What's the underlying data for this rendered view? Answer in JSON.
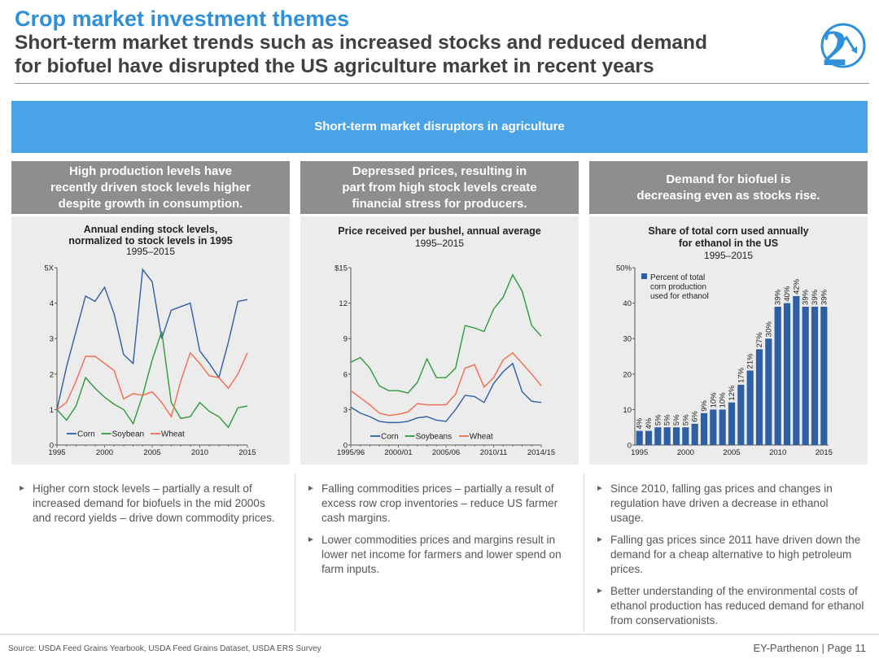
{
  "header": {
    "title": "Crop market investment themes",
    "subtitle_line1": "Short-term market trends such as increased stocks and reduced demand",
    "subtitle_line2": "for biofuel have disrupted the US agriculture market in recent years",
    "badge_number": "2",
    "badge_icon": "downward-trend-arrow-icon",
    "accent_color": "#2f8fd8"
  },
  "banner": {
    "label": "Short-term market disruptors in agriculture",
    "color": "#4aa3e6"
  },
  "columns": [
    {
      "heading_lines": [
        "High production levels have",
        "recently driven stock levels higher",
        "despite growth in consumption."
      ],
      "chart_title_lines": [
        "Annual ending stock levels,",
        "normalized to stock levels in 1995"
      ],
      "chart_subtitle": "1995–2015",
      "bullets": [
        "Higher corn stock levels – partially a result of increased demand for biofuels in the mid 2000s and record yields – drive down commodity prices."
      ]
    },
    {
      "heading_lines": [
        "Depressed prices, resulting in",
        "part from high stock levels create",
        "financial stress for producers."
      ],
      "chart_title_lines": [
        "Price received per bushel, annual average"
      ],
      "chart_subtitle": "1995–2015",
      "bullets": [
        "Falling commodities prices – partially a result of excess row crop inventories – reduce US farmer cash margins.",
        "Lower commodities prices and margins result in lower net income for farmers and lower spend on farm inputs."
      ]
    },
    {
      "heading_lines": [
        "Demand for biofuel is",
        "decreasing even as stocks rise."
      ],
      "chart_title_lines": [
        "Share of total corn used annually",
        "for ethanol in the US"
      ],
      "chart_subtitle": "1995–2015",
      "bullets": [
        "Since 2010, falling gas prices and changes in regulation have driven a decrease in ethanol usage.",
        "Falling gas prices since 2011 have driven down the demand for a cheap alternative to high petroleum prices.",
        "Better understanding of the environmental costs of ethanol production has reduced demand for ethanol from conservationists."
      ]
    }
  ],
  "chart_data": [
    {
      "type": "line",
      "x": [
        1995,
        1996,
        1997,
        1998,
        1999,
        2000,
        2001,
        2002,
        2003,
        2004,
        2005,
        2006,
        2007,
        2008,
        2009,
        2010,
        2011,
        2012,
        2013,
        2014,
        2015
      ],
      "series": [
        {
          "name": "Corn",
          "color": "#2e5fa3",
          "values": [
            1.0,
            2.2,
            3.2,
            4.2,
            4.05,
            4.45,
            3.7,
            2.55,
            2.3,
            4.95,
            4.6,
            3.0,
            3.8,
            3.9,
            4.0,
            2.65,
            2.3,
            1.9,
            2.9,
            4.05,
            4.1
          ]
        },
        {
          "name": "Soybean",
          "color": "#2e9a3a",
          "values": [
            1.0,
            0.7,
            1.1,
            1.9,
            1.6,
            1.35,
            1.15,
            1.0,
            0.6,
            1.4,
            2.4,
            3.2,
            1.2,
            0.75,
            0.8,
            1.2,
            0.95,
            0.8,
            0.5,
            1.05,
            1.1
          ]
        },
        {
          "name": "Wheat",
          "color": "#f26b4e",
          "values": [
            1.0,
            1.2,
            1.8,
            2.5,
            2.5,
            2.3,
            2.1,
            1.3,
            1.45,
            1.4,
            1.5,
            1.2,
            0.8,
            1.8,
            2.6,
            2.3,
            1.95,
            1.9,
            1.6,
            2.0,
            2.6
          ]
        }
      ],
      "ylim": [
        0,
        5
      ],
      "yticks": [
        "0",
        "1",
        "2",
        "3",
        "4",
        "5X"
      ],
      "xticks": [
        "1995",
        "2000",
        "2005",
        "2010",
        "2015"
      ],
      "legend": "bottom-left",
      "grid": false
    },
    {
      "type": "line",
      "x": [
        1995,
        1996,
        1997,
        1998,
        1999,
        2000,
        2001,
        2002,
        2003,
        2004,
        2005,
        2006,
        2007,
        2008,
        2009,
        2010,
        2011,
        2012,
        2013,
        2014,
        2015
      ],
      "series": [
        {
          "name": "Corn",
          "color": "#2e5fa3",
          "values": [
            3.2,
            2.7,
            2.4,
            2.0,
            1.9,
            1.9,
            2.0,
            2.3,
            2.4,
            2.1,
            2.0,
            3.0,
            4.2,
            4.1,
            3.6,
            5.2,
            6.2,
            6.9,
            4.5,
            3.7,
            3.6
          ]
        },
        {
          "name": "Soybeans",
          "color": "#2e9a3a",
          "values": [
            7.0,
            7.4,
            6.5,
            5.0,
            4.6,
            4.6,
            4.4,
            5.3,
            7.3,
            5.7,
            5.7,
            6.5,
            10.1,
            9.9,
            9.6,
            11.5,
            12.5,
            14.4,
            13.0,
            10.1,
            9.2
          ]
        },
        {
          "name": "Wheat",
          "color": "#f26b4e",
          "values": [
            4.6,
            4.0,
            3.4,
            2.7,
            2.5,
            2.6,
            2.8,
            3.5,
            3.4,
            3.4,
            3.4,
            4.3,
            6.5,
            6.8,
            4.9,
            5.7,
            7.2,
            7.8,
            6.9,
            6.0,
            5.0
          ]
        }
      ],
      "ylim": [
        0,
        15
      ],
      "yticks": [
        "0",
        "3",
        "6",
        "9",
        "12",
        "$15"
      ],
      "xticks": [
        "1995/96",
        "2000/01",
        "2005/06",
        "2010/11",
        "2014/15"
      ],
      "legend": "bottom-center",
      "grid": false
    },
    {
      "type": "bar",
      "categories": [
        "1995",
        "1996",
        "1997",
        "1998",
        "1999",
        "2000",
        "2001",
        "2002",
        "2003",
        "2004",
        "2005",
        "2006",
        "2007",
        "2008",
        "2009",
        "2010",
        "2011",
        "2012",
        "2013",
        "2014",
        "2015"
      ],
      "values": [
        4,
        4,
        5,
        5,
        5,
        5,
        6,
        9,
        10,
        10,
        12,
        17,
        21,
        27,
        30,
        39,
        40,
        42,
        39,
        39,
        39
      ],
      "data_labels": [
        "4%",
        "4%",
        "5%",
        "5%",
        "5%",
        "5%",
        "6%",
        "9%",
        "10%",
        "10%",
        "12%",
        "17%",
        "21%",
        "27%",
        "30%",
        "39%",
        "40%",
        "42%",
        "39%",
        "39%",
        "39%"
      ],
      "series_name_lines": [
        "Percent of total",
        "corn production",
        "used for ethanol"
      ],
      "color": "#2e5fa3",
      "ylim": [
        0,
        50
      ],
      "yticks": [
        "0",
        "10",
        "20",
        "30",
        "40",
        "50%"
      ],
      "xticks": [
        "1995",
        "2000",
        "2005",
        "2010",
        "2015"
      ],
      "legend": "top-left",
      "grid": false
    }
  ],
  "footer": {
    "source": "Source: USDA Feed Grains Yearbook, USDA Feed Grains Dataset, USDA ERS Survey",
    "page": "EY-Parthenon  |  Page 11"
  }
}
